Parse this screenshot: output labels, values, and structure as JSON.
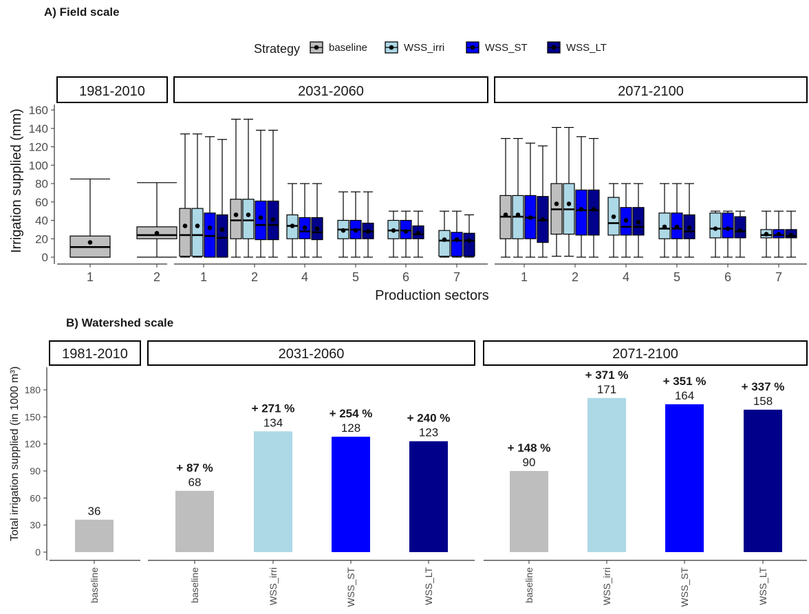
{
  "colors": {
    "baseline": "#bebebe",
    "WSS_irri": "#add8e6",
    "WSS_ST": "#0000ff",
    "WSS_LT": "#00008b",
    "axis": "#333333",
    "tick_text": "#4d4d4d"
  },
  "chart_data": [
    {
      "type": "box",
      "panel_title": "A) Field scale",
      "xlabel": "Production sectors",
      "ylabel": "Irrigation supplied (mm)",
      "ylim": [
        -8,
        165
      ],
      "y_ticks": [
        0,
        20,
        40,
        60,
        80,
        100,
        120,
        140,
        160
      ],
      "legend": {
        "title": "Strategy",
        "position": "top",
        "entries": [
          "baseline",
          "WSS_irri",
          "WSS_ST",
          "WSS_LT"
        ]
      },
      "facets": [
        {
          "label": "1981-2010",
          "sectors": [
            {
              "label": "1",
              "boxes": [
                {
                  "strategy": "baseline",
                  "min": 0,
                  "q1": 0,
                  "median": 11,
                  "q3": 23,
                  "max": 85,
                  "mean": 16
                }
              ]
            },
            {
              "label": "2",
              "boxes": [
                {
                  "strategy": "baseline",
                  "min": 0,
                  "q1": 20,
                  "median": 24,
                  "q3": 33,
                  "max": 81,
                  "mean": 26
                }
              ]
            }
          ]
        },
        {
          "label": "2031-2060",
          "sectors": [
            {
              "label": "1",
              "boxes": [
                {
                  "strategy": "baseline",
                  "min": 0,
                  "q1": 1,
                  "median": 24,
                  "q3": 53,
                  "max": 134,
                  "mean": 34
                },
                {
                  "strategy": "WSS_irri",
                  "min": 0,
                  "q1": 1,
                  "median": 24,
                  "q3": 53,
                  "max": 134,
                  "mean": 34
                },
                {
                  "strategy": "WSS_ST",
                  "min": 0,
                  "q1": 0,
                  "median": 23,
                  "q3": 48,
                  "max": 131,
                  "mean": 32
                },
                {
                  "strategy": "WSS_LT",
                  "min": 0,
                  "q1": 0,
                  "median": 21,
                  "q3": 46,
                  "max": 128,
                  "mean": 30
                }
              ]
            },
            {
              "label": "2",
              "boxes": [
                {
                  "strategy": "baseline",
                  "min": 0,
                  "q1": 20,
                  "median": 40,
                  "q3": 63,
                  "max": 150,
                  "mean": 46
                },
                {
                  "strategy": "WSS_irri",
                  "min": 0,
                  "q1": 20,
                  "median": 40,
                  "q3": 63,
                  "max": 150,
                  "mean": 46
                },
                {
                  "strategy": "WSS_ST",
                  "min": 0,
                  "q1": 19,
                  "median": 35,
                  "q3": 61,
                  "max": 138,
                  "mean": 43
                },
                {
                  "strategy": "WSS_LT",
                  "min": 0,
                  "q1": 19,
                  "median": 35,
                  "q3": 61,
                  "max": 138,
                  "mean": 41
                }
              ]
            },
            {
              "label": "4",
              "boxes": [
                {
                  "strategy": "WSS_irri",
                  "min": 0,
                  "q1": 20,
                  "median": 34,
                  "q3": 46,
                  "max": 80,
                  "mean": 34
                },
                {
                  "strategy": "WSS_ST",
                  "min": 0,
                  "q1": 20,
                  "median": 28,
                  "q3": 43,
                  "max": 80,
                  "mean": 32
                },
                {
                  "strategy": "WSS_LT",
                  "min": 0,
                  "q1": 19,
                  "median": 27,
                  "q3": 43,
                  "max": 80,
                  "mean": 31
                }
              ]
            },
            {
              "label": "5",
              "boxes": [
                {
                  "strategy": "WSS_irri",
                  "min": 0,
                  "q1": 20,
                  "median": 30,
                  "q3": 40,
                  "max": 71,
                  "mean": 29
                },
                {
                  "strategy": "WSS_ST",
                  "min": 0,
                  "q1": 20,
                  "median": 30,
                  "q3": 40,
                  "max": 71,
                  "mean": 29
                },
                {
                  "strategy": "WSS_LT",
                  "min": 0,
                  "q1": 20,
                  "median": 28,
                  "q3": 37,
                  "max": 71,
                  "mean": 28
                }
              ]
            },
            {
              "label": "6",
              "boxes": [
                {
                  "strategy": "WSS_irri",
                  "min": 0,
                  "q1": 20,
                  "median": 29,
                  "q3": 40,
                  "max": 50,
                  "mean": 29
                },
                {
                  "strategy": "WSS_ST",
                  "min": 0,
                  "q1": 20,
                  "median": 29,
                  "q3": 40,
                  "max": 50,
                  "mean": 28
                },
                {
                  "strategy": "WSS_LT",
                  "min": 0,
                  "q1": 20,
                  "median": 25,
                  "q3": 34,
                  "max": 50,
                  "mean": 26
                }
              ]
            },
            {
              "label": "7",
              "boxes": [
                {
                  "strategy": "WSS_irri",
                  "min": 0,
                  "q1": 1,
                  "median": 18,
                  "q3": 29,
                  "max": 50,
                  "mean": 19
                },
                {
                  "strategy": "WSS_ST",
                  "min": 0,
                  "q1": 1,
                  "median": 18,
                  "q3": 27,
                  "max": 50,
                  "mean": 19
                },
                {
                  "strategy": "WSS_LT",
                  "min": 0,
                  "q1": 1,
                  "median": 18,
                  "q3": 26,
                  "max": 46,
                  "mean": 18
                }
              ]
            }
          ]
        },
        {
          "label": "2071-2100",
          "sectors": [
            {
              "label": "1",
              "boxes": [
                {
                  "strategy": "baseline",
                  "min": 0,
                  "q1": 20,
                  "median": 44,
                  "q3": 67,
                  "max": 129,
                  "mean": 46
                },
                {
                  "strategy": "WSS_irri",
                  "min": 0,
                  "q1": 20,
                  "median": 44,
                  "q3": 67,
                  "max": 129,
                  "mean": 46
                },
                {
                  "strategy": "WSS_ST",
                  "min": 0,
                  "q1": 20,
                  "median": 43,
                  "q3": 67,
                  "max": 124,
                  "mean": 43
                },
                {
                  "strategy": "WSS_LT",
                  "min": 0,
                  "q1": 16,
                  "median": 40,
                  "q3": 66,
                  "max": 121,
                  "mean": 41
                }
              ]
            },
            {
              "label": "2",
              "boxes": [
                {
                  "strategy": "baseline",
                  "min": 1,
                  "q1": 25,
                  "median": 52,
                  "q3": 80,
                  "max": 141,
                  "mean": 58
                },
                {
                  "strategy": "WSS_irri",
                  "min": 1,
                  "q1": 25,
                  "median": 52,
                  "q3": 80,
                  "max": 141,
                  "mean": 58
                },
                {
                  "strategy": "WSS_ST",
                  "min": 0,
                  "q1": 24,
                  "median": 51,
                  "q3": 73,
                  "max": 131,
                  "mean": 52
                },
                {
                  "strategy": "WSS_LT",
                  "min": 0,
                  "q1": 24,
                  "median": 51,
                  "q3": 73,
                  "max": 129,
                  "mean": 52
                }
              ]
            },
            {
              "label": "4",
              "boxes": [
                {
                  "strategy": "WSS_irri",
                  "min": 0,
                  "q1": 24,
                  "median": 37,
                  "q3": 65,
                  "max": 80,
                  "mean": 44
                },
                {
                  "strategy": "WSS_ST",
                  "min": 0,
                  "q1": 24,
                  "median": 33,
                  "q3": 54,
                  "max": 80,
                  "mean": 40
                },
                {
                  "strategy": "WSS_LT",
                  "min": 0,
                  "q1": 24,
                  "median": 33,
                  "q3": 54,
                  "max": 80,
                  "mean": 38
                }
              ]
            },
            {
              "label": "5",
              "boxes": [
                {
                  "strategy": "WSS_irri",
                  "min": 0,
                  "q1": 20,
                  "median": 31,
                  "q3": 48,
                  "max": 80,
                  "mean": 33
                },
                {
                  "strategy": "WSS_ST",
                  "min": 0,
                  "q1": 20,
                  "median": 31,
                  "q3": 48,
                  "max": 80,
                  "mean": 33
                },
                {
                  "strategy": "WSS_LT",
                  "min": 0,
                  "q1": 20,
                  "median": 28,
                  "q3": 46,
                  "max": 80,
                  "mean": 32
                }
              ]
            },
            {
              "label": "6",
              "boxes": [
                {
                  "strategy": "WSS_irri",
                  "min": 0,
                  "q1": 21,
                  "median": 31,
                  "q3": 48,
                  "max": 50,
                  "mean": 31
                },
                {
                  "strategy": "WSS_ST",
                  "min": 0,
                  "q1": 21,
                  "median": 31,
                  "q3": 48,
                  "max": 50,
                  "mean": 31
                },
                {
                  "strategy": "WSS_LT",
                  "min": 0,
                  "q1": 21,
                  "median": 28,
                  "q3": 44,
                  "max": 50,
                  "mean": 29
                }
              ]
            },
            {
              "label": "7",
              "boxes": [
                {
                  "strategy": "WSS_irri",
                  "min": 0,
                  "q1": 21,
                  "median": 24,
                  "q3": 30,
                  "max": 50,
                  "mean": 25
                },
                {
                  "strategy": "WSS_ST",
                  "min": 0,
                  "q1": 21,
                  "median": 24,
                  "q3": 30,
                  "max": 50,
                  "mean": 25
                },
                {
                  "strategy": "WSS_LT",
                  "min": 0,
                  "q1": 21,
                  "median": 23,
                  "q3": 30,
                  "max": 50,
                  "mean": 24
                }
              ]
            }
          ]
        }
      ]
    },
    {
      "type": "bar",
      "panel_title": "B) Watershed scale",
      "xlabel": "",
      "ylabel": "Total irrigation supplied (in 1000 m³)",
      "ylim": [
        -8,
        198
      ],
      "y_ticks": [
        0,
        30,
        60,
        90,
        120,
        150,
        180
      ],
      "facets": [
        {
          "label": "1981-2010",
          "bars": [
            {
              "category": "baseline",
              "value": 36,
              "label": "36",
              "change": ""
            }
          ]
        },
        {
          "label": "2031-2060",
          "bars": [
            {
              "category": "baseline",
              "value": 68,
              "label": "68",
              "change": "+ 87 %"
            },
            {
              "category": "WSS_irri",
              "value": 134,
              "label": "134",
              "change": "+ 271 %"
            },
            {
              "category": "WSS_ST",
              "value": 128,
              "label": "128",
              "change": "+ 254 %"
            },
            {
              "category": "WSS_LT",
              "value": 123,
              "label": "123",
              "change": "+ 240 %"
            }
          ]
        },
        {
          "label": "2071-2100",
          "bars": [
            {
              "category": "baseline",
              "value": 90,
              "label": "90",
              "change": "+ 148 %"
            },
            {
              "category": "WSS_irri",
              "value": 171,
              "label": "171",
              "change": "+ 371 %"
            },
            {
              "category": "WSS_ST",
              "value": 164,
              "label": "164",
              "change": "+ 351 %"
            },
            {
              "category": "WSS_LT",
              "value": 158,
              "label": "158",
              "change": "+ 337 %"
            }
          ]
        }
      ]
    }
  ]
}
